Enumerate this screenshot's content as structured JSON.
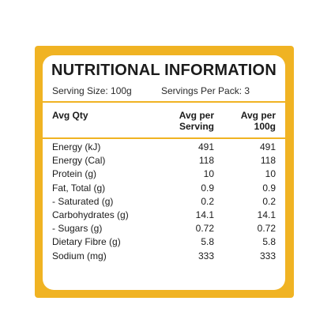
{
  "panel": {
    "title": "NUTRITIONAL INFORMATION",
    "serving_size": "Serving Size: 100g",
    "servings_per_pack": "Servings Per Pack: 3"
  },
  "header": {
    "label": "Avg Qty",
    "col1_line1": "Avg per",
    "col1_line2": "Serving",
    "col2_line1": "Avg per",
    "col2_line2": "100g"
  },
  "rows": [
    {
      "name": "Energy (kJ)",
      "serving": "491",
      "per100": "491"
    },
    {
      "name": "Energy (Cal)",
      "serving": "118",
      "per100": "118"
    },
    {
      "name": "Protein (g)",
      "serving": "10",
      "per100": "10"
    },
    {
      "name": "Fat, Total (g)",
      "serving": "0.9",
      "per100": "0.9"
    },
    {
      "name": "- Saturated (g)",
      "serving": "0.2",
      "per100": "0.2"
    },
    {
      "name": "Carbohydrates (g)",
      "serving": "14.1",
      "per100": "14.1"
    },
    {
      "name": "- Sugars (g)",
      "serving": "0.72",
      "per100": "0.72"
    },
    {
      "name": "Dietary Fibre (g)",
      "serving": "5.8",
      "per100": "5.8"
    },
    {
      "name": "Sodium (mg)",
      "serving": "333",
      "per100": "333"
    }
  ],
  "colors": {
    "accent": "#f0b323",
    "text": "#1b1b1b"
  }
}
